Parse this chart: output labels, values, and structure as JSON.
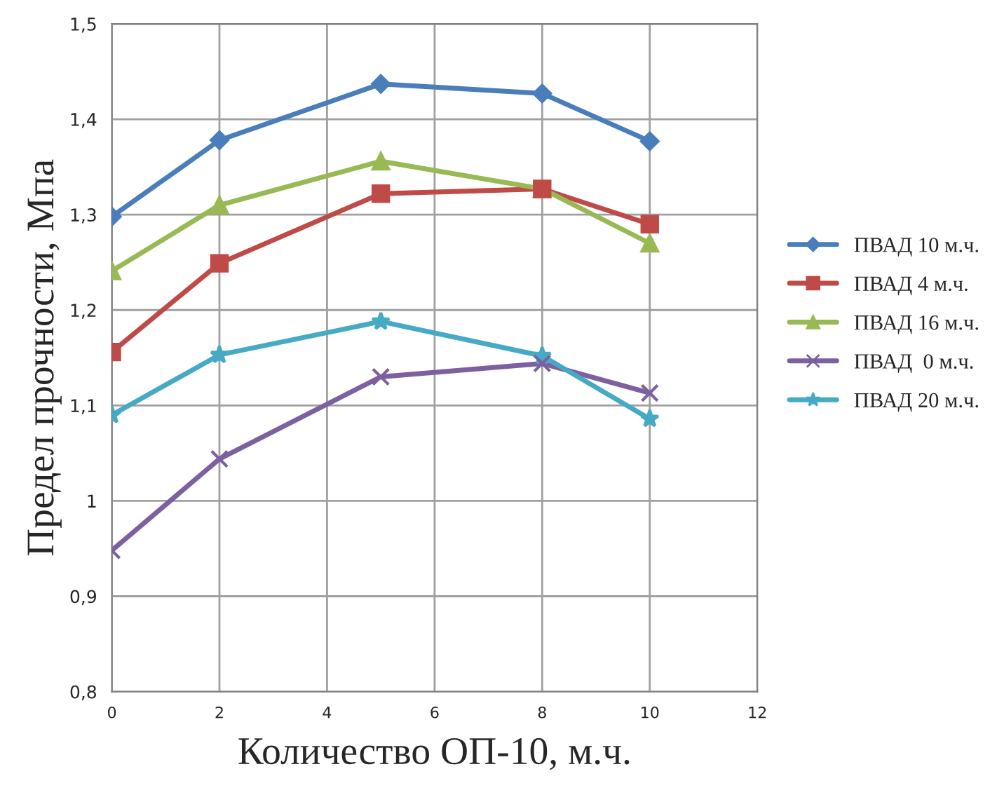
{
  "chart_data": {
    "type": "line",
    "xlabel": "Количество ОП-10, м.ч.",
    "ylabel": "Предел прочности, Мпа",
    "x": [
      0,
      2,
      5,
      8,
      10
    ],
    "series": [
      {
        "name": "ПВАД 10 м.ч.",
        "color": "#4a7ebb",
        "marker": "diamond",
        "values": [
          1.298,
          1.378,
          1.437,
          1.427,
          1.377
        ]
      },
      {
        "name": "ПВАД 4 м.ч.",
        "color": "#be4b48",
        "marker": "square",
        "values": [
          1.156,
          1.249,
          1.322,
          1.327,
          1.29
        ]
      },
      {
        "name": "ПВАД 16 м.ч.",
        "color": "#98b954",
        "marker": "triangle",
        "values": [
          1.241,
          1.31,
          1.356,
          1.327,
          1.27
        ]
      },
      {
        "name": "ПВАД  0 м.ч.",
        "color": "#7d60a0",
        "marker": "cross",
        "values": [
          0.948,
          1.044,
          1.13,
          1.144,
          1.113
        ]
      },
      {
        "name": "ПВАД 20 м.ч.",
        "color": "#46aac5",
        "marker": "star",
        "values": [
          1.09,
          1.153,
          1.188,
          1.152,
          1.086
        ]
      }
    ],
    "xlim": [
      0,
      12
    ],
    "xticks": [
      0,
      2,
      4,
      6,
      8,
      10,
      12
    ],
    "ylim": [
      0.8,
      1.5
    ],
    "yticks": [
      {
        "value": 0.8,
        "label": "0,8"
      },
      {
        "value": 0.9,
        "label": "0,9"
      },
      {
        "value": 1.0,
        "label": "1"
      },
      {
        "value": 1.1,
        "label": "1,1"
      },
      {
        "value": 1.2,
        "label": "1,2"
      },
      {
        "value": 1.3,
        "label": "1,3"
      },
      {
        "value": 1.4,
        "label": "1,4"
      },
      {
        "value": 1.5,
        "label": "1,5"
      }
    ],
    "grid": true,
    "legend": "right",
    "line_style": "solid"
  }
}
